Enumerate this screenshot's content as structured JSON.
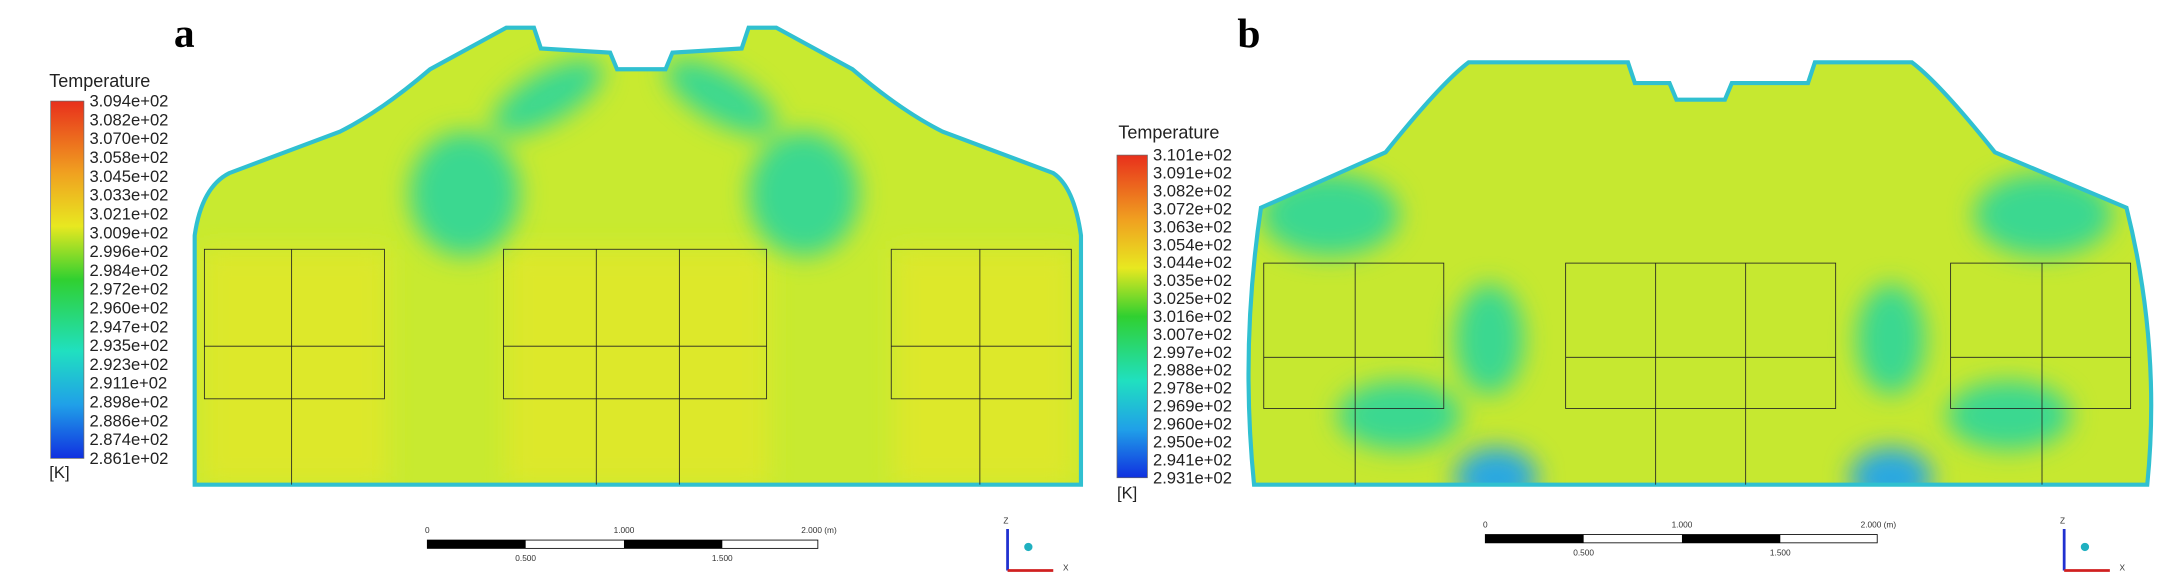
{
  "panels": [
    {
      "label": "a",
      "legend": {
        "title": "Temperature",
        "ticks": [
          "3.094e+02",
          "3.082e+02",
          "3.070e+02",
          "3.058e+02",
          "3.045e+02",
          "3.033e+02",
          "3.021e+02",
          "3.009e+02",
          "2.996e+02",
          "2.984e+02",
          "2.972e+02",
          "2.960e+02",
          "2.947e+02",
          "2.935e+02",
          "2.923e+02",
          "2.911e+02",
          "2.898e+02",
          "2.886e+02",
          "2.874e+02",
          "2.861e+02"
        ],
        "unit": "[K]"
      },
      "scale_bar": {
        "top": [
          "0",
          "1.000",
          "2.000 (m)"
        ],
        "bottom": [
          "0.500",
          "1.500"
        ]
      },
      "axes": {
        "z": "Z",
        "x": "X"
      }
    },
    {
      "label": "b",
      "legend": {
        "title": "Temperature",
        "ticks": [
          "3.101e+02",
          "3.091e+02",
          "3.082e+02",
          "3.072e+02",
          "3.063e+02",
          "3.054e+02",
          "3.044e+02",
          "3.035e+02",
          "3.025e+02",
          "3.016e+02",
          "3.007e+02",
          "2.997e+02",
          "2.988e+02",
          "2.978e+02",
          "2.969e+02",
          "2.960e+02",
          "2.950e+02",
          "2.941e+02",
          "2.931e+02"
        ],
        "unit": "[K]"
      },
      "scale_bar": {
        "top": [
          "0",
          "1.000",
          "2.000 (m)"
        ],
        "bottom": [
          "0.500",
          "1.500"
        ]
      },
      "axes": {
        "z": "Z",
        "x": "X"
      }
    }
  ]
}
